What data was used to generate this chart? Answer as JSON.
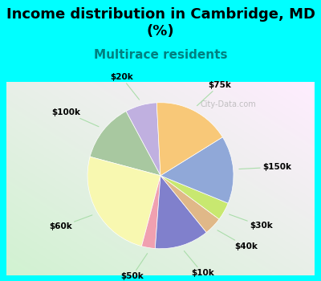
{
  "title": "Income distribution in Cambridge, MD\n(%)",
  "subtitle": "Multirace residents",
  "title_fontsize": 13,
  "subtitle_fontsize": 11,
  "subtitle_color": "#008080",
  "background_color": "#00FFFF",
  "labels": [
    "$20k",
    "$100k",
    "$60k",
    "$50k",
    "$10k",
    "$40k",
    "$30k",
    "$150k",
    "$75k"
  ],
  "values": [
    7,
    13,
    25,
    3,
    12,
    4,
    4,
    15,
    17
  ],
  "colors": [
    "#c0b0e0",
    "#a8c8a0",
    "#f8f8b0",
    "#f0a0b0",
    "#8080cc",
    "#e0b888",
    "#c8e870",
    "#90a8d8",
    "#f8c878"
  ],
  "startangle": 93,
  "watermark": "City-Data.com"
}
